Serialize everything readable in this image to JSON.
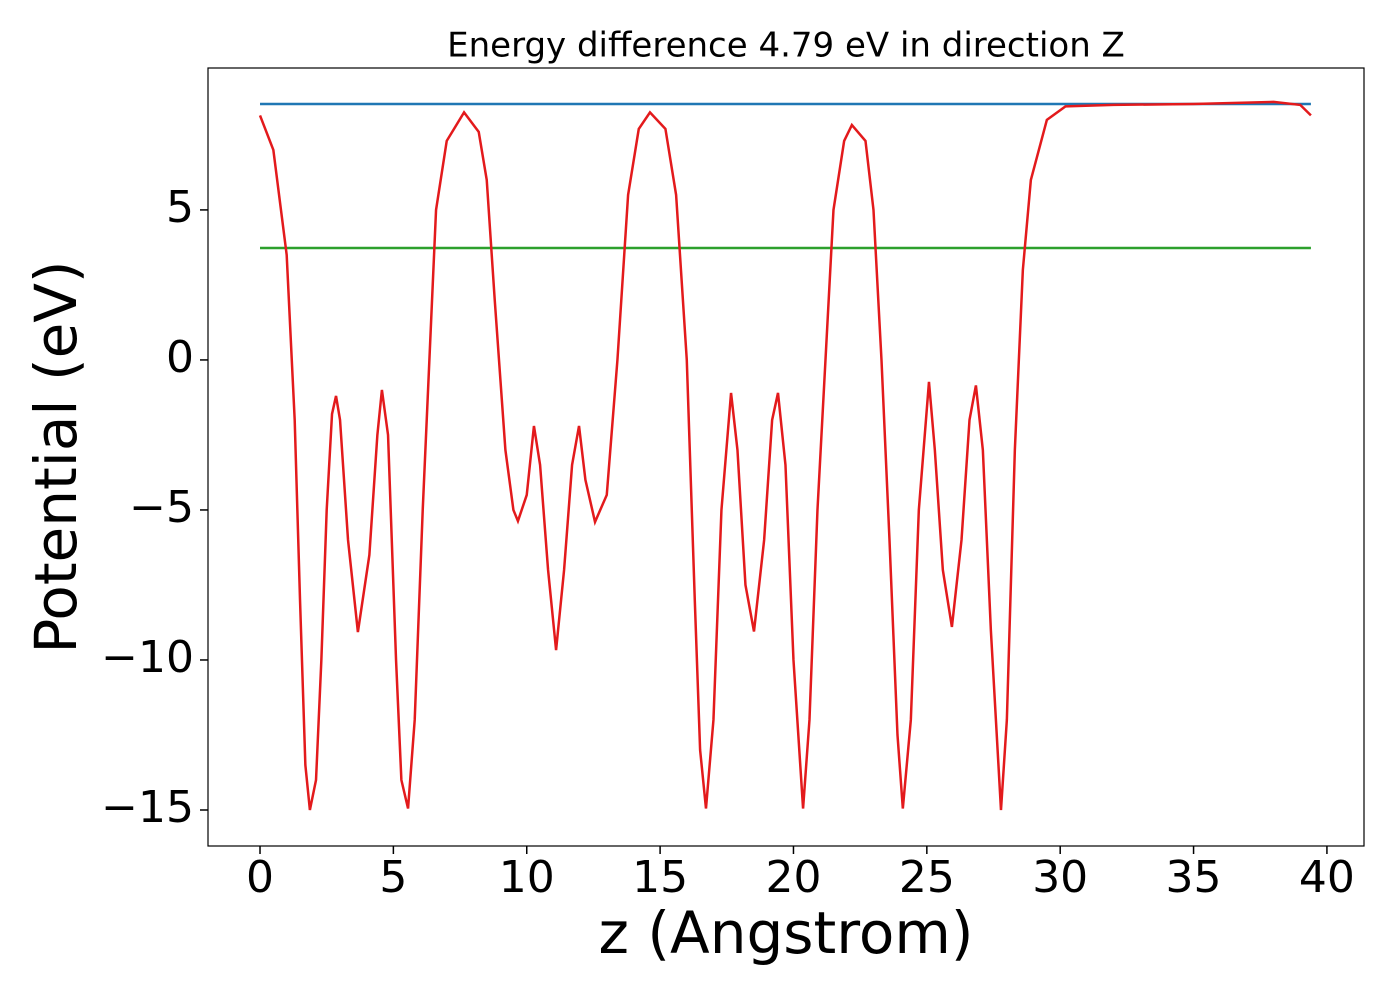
{
  "chart_data": {
    "type": "line",
    "title": "Energy difference 4.79 eV in direction Z",
    "xlabel": "z (Angstrom)",
    "ylabel": "Potential (eV)",
    "xlim": [
      -1.95,
      41.39
    ],
    "ylim": [
      -16.2,
      9.73
    ],
    "xticks": [
      0,
      5,
      10,
      15,
      20,
      25,
      30,
      35,
      40
    ],
    "yticks": [
      {
        "value": -15,
        "label": "−15"
      },
      {
        "value": -10,
        "label": "−10"
      },
      {
        "value": -5,
        "label": "−5"
      },
      0,
      5
    ],
    "grid": false,
    "series": [
      {
        "color": "#1f77b4",
        "x": [
          0,
          39.4
        ],
        "values": [
          8.53,
          8.53
        ]
      },
      {
        "color": "#2ca02c",
        "x": [
          0,
          39.4
        ],
        "values": [
          3.73,
          3.73
        ]
      },
      {
        "color": "#e31a1c",
        "x": [
          0,
          0.5,
          1.0,
          1.3,
          1.5,
          1.7,
          1.87,
          2.1,
          2.3,
          2.5,
          2.7,
          2.85,
          3.0,
          3.3,
          3.67,
          4.1,
          4.4,
          4.57,
          4.8,
          5.1,
          5.3,
          5.55,
          5.8,
          6.1,
          6.4,
          6.6,
          7.0,
          7.65,
          8.2,
          8.5,
          8.8,
          9.2,
          9.5,
          9.67,
          10.0,
          10.27,
          10.5,
          10.8,
          11.1,
          11.4,
          11.7,
          11.96,
          12.2,
          12.56,
          13.0,
          13.4,
          13.8,
          14.2,
          14.62,
          15.2,
          15.6,
          16.0,
          16.3,
          16.5,
          16.72,
          17.0,
          17.3,
          17.66,
          17.9,
          18.2,
          18.52,
          18.9,
          19.2,
          19.42,
          19.7,
          20.0,
          20.36,
          20.6,
          20.9,
          21.2,
          21.5,
          21.9,
          22.19,
          22.7,
          23.0,
          23.3,
          23.6,
          23.9,
          24.1,
          24.4,
          24.7,
          25.08,
          25.3,
          25.6,
          25.94,
          26.3,
          26.6,
          26.84,
          27.1,
          27.4,
          27.78,
          28.0,
          28.3,
          28.6,
          28.9,
          29.5,
          30.2,
          32,
          35,
          38,
          39,
          39.4
        ],
        "values": [
          8.15,
          7.0,
          3.5,
          -2,
          -8,
          -13.5,
          -15,
          -14,
          -10,
          -5,
          -1.8,
          -1.2,
          -2,
          -6,
          -9.07,
          -6.5,
          -2.5,
          -1.0,
          -2.5,
          -10,
          -14,
          -14.95,
          -12,
          -5,
          1,
          5,
          7.3,
          8.25,
          7.6,
          6,
          2,
          -3,
          -5.0,
          -5.37,
          -4.5,
          -2.2,
          -3.5,
          -7,
          -9.67,
          -7,
          -3.5,
          -2.2,
          -4,
          -5.4,
          -4.5,
          0,
          5.5,
          7.7,
          8.25,
          7.7,
          5.5,
          0,
          -8,
          -13,
          -14.95,
          -12,
          -5,
          -1.1,
          -3,
          -7.5,
          -9.05,
          -6,
          -2,
          -1.1,
          -3.5,
          -10,
          -14.95,
          -12,
          -5,
          0,
          5,
          7.3,
          7.83,
          7.3,
          5,
          0,
          -6,
          -12.5,
          -14.95,
          -12,
          -5,
          -0.73,
          -3,
          -7,
          -8.9,
          -6,
          -2,
          -0.85,
          -3,
          -9,
          -15,
          -12,
          -3,
          3,
          6,
          8,
          8.45,
          8.5,
          8.53,
          8.6,
          8.5,
          8.15
        ]
      }
    ]
  }
}
